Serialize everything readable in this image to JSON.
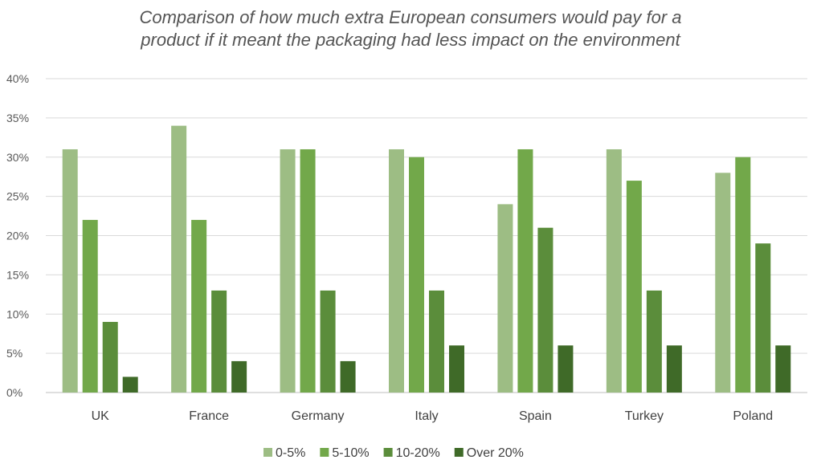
{
  "chart_data": {
    "type": "bar",
    "title_line1": "Comparison of how much extra European consumers would pay for a",
    "title_line2": "product if it meant the packaging had less impact on the environment",
    "categories": [
      "UK",
      "France",
      "Germany",
      "Italy",
      "Spain",
      "Turkey",
      "Poland"
    ],
    "series": [
      {
        "name": "0-5%",
        "color": "#9dbd84",
        "values": [
          31,
          34,
          31,
          31,
          24,
          31,
          28
        ]
      },
      {
        "name": "5-10%",
        "color": "#72a84a",
        "values": [
          22,
          22,
          31,
          30,
          31,
          27,
          30
        ]
      },
      {
        "name": "10-20%",
        "color": "#5b8d3b",
        "values": [
          9,
          13,
          13,
          13,
          21,
          13,
          19
        ]
      },
      {
        "name": "Over 20%",
        "color": "#3f6a28",
        "values": [
          2,
          4,
          4,
          6,
          6,
          6,
          6
        ]
      }
    ],
    "yticks": [
      "0%",
      "5%",
      "10%",
      "15%",
      "20%",
      "25%",
      "30%",
      "35%",
      "40%"
    ],
    "ylim": [
      0,
      40
    ],
    "grid": true,
    "legend": "bottom"
  }
}
